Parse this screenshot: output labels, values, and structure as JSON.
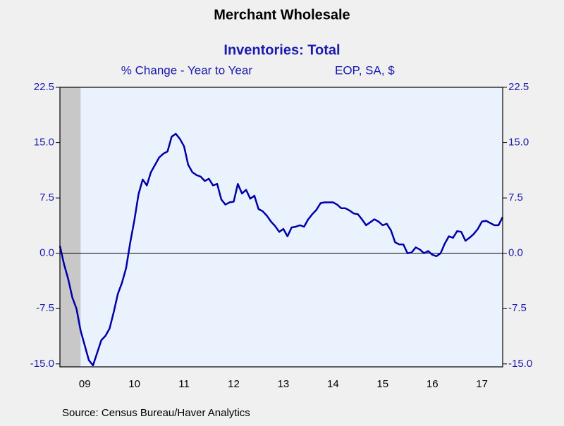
{
  "chart_data": {
    "type": "line",
    "title": "Merchant Wholesale",
    "subtitle": "Inventories: Total",
    "units": "% Change - Year to Year",
    "notes": "EOP, SA, $",
    "source": "Source:  Census Bureau/Haver Analytics",
    "x": [
      2009,
      2009.083,
      2009.167,
      2009.25,
      2009.333,
      2009.417,
      2009.5,
      2009.583,
      2009.667,
      2009.75,
      2009.833,
      2009.917,
      2010,
      2010.083,
      2010.167,
      2010.25,
      2010.333,
      2010.417,
      2010.5,
      2010.583,
      2010.667,
      2010.75,
      2010.833,
      2010.917,
      2011,
      2011.083,
      2011.167,
      2011.25,
      2011.333,
      2011.417,
      2011.5,
      2011.583,
      2011.667,
      2011.75,
      2011.833,
      2011.917,
      2012,
      2012.083,
      2012.167,
      2012.25,
      2012.333,
      2012.417,
      2012.5,
      2012.583,
      2012.667,
      2012.75,
      2012.833,
      2012.917,
      2013,
      2013.083,
      2013.167,
      2013.25,
      2013.333,
      2013.417,
      2013.5,
      2013.583,
      2013.667,
      2013.75,
      2013.833,
      2013.917,
      2014,
      2014.083,
      2014.167,
      2014.25,
      2014.333,
      2014.417,
      2014.5,
      2014.583,
      2014.667,
      2014.75,
      2014.833,
      2014.917,
      2015,
      2015.083,
      2015.167,
      2015.25,
      2015.333,
      2015.417,
      2015.5,
      2015.583,
      2015.667,
      2015.75,
      2015.833,
      2015.917,
      2016,
      2016.083,
      2016.167,
      2016.25,
      2016.333,
      2016.417,
      2016.5,
      2016.583,
      2016.667,
      2016.75,
      2016.833,
      2016.917,
      2017,
      2017.083,
      2017.167,
      2017.25,
      2017.333,
      2017.417,
      2017.5,
      2017.583,
      2017.667,
      2017.75,
      2017.833,
      2017.917
    ],
    "series": [
      {
        "color": "#0000a8",
        "values": [
          1.0,
          -1.5,
          -3.5,
          -6,
          -7.5,
          -10.5,
          -12.5,
          -14.5,
          -15.2,
          -13.5,
          -11.8,
          -11.2,
          -10.2,
          -8,
          -5.5,
          -4,
          -2,
          1.5,
          4.5,
          8,
          10,
          9.2,
          11,
          12,
          13,
          13.5,
          13.8,
          15.8,
          16.2,
          15.5,
          14.5,
          12,
          11,
          10.6,
          10.4,
          9.8,
          10.1,
          9.2,
          9.4,
          7.3,
          6.6,
          6.9,
          7,
          9.4,
          8.1,
          8.6,
          7.4,
          7.8,
          6,
          5.7,
          5.1,
          4.3,
          3.7,
          2.9,
          3.3,
          2.3,
          3.5,
          3.6,
          3.8,
          3.6,
          4.6,
          5.3,
          5.9,
          6.8,
          6.9,
          6.9,
          6.9,
          6.6,
          6.1,
          6.1,
          5.8,
          5.4,
          5.3,
          4.6,
          3.8,
          4.2,
          4.6,
          4.3,
          3.8,
          4.0,
          3.1,
          1.5,
          1.2,
          1.2,
          0.0,
          0.1,
          0.8,
          0.5,
          0.0,
          0.3,
          -0.2,
          -0.4,
          0.0,
          1.3,
          2.3,
          2.1,
          3.0,
          2.9,
          1.7,
          2.1,
          2.6,
          3.3,
          4.3,
          4.4,
          4.1,
          3.8,
          3.8,
          4.9
        ]
      }
    ],
    "xlim": [
      2009,
      2017.917
    ],
    "xticks": [
      {
        "value": 2009.5,
        "label": "09"
      },
      {
        "value": 2010.5,
        "label": "10"
      },
      {
        "value": 2011.5,
        "label": "11"
      },
      {
        "value": 2012.5,
        "label": "12"
      },
      {
        "value": 2013.5,
        "label": "13"
      },
      {
        "value": 2014.5,
        "label": "14"
      },
      {
        "value": 2015.5,
        "label": "15"
      },
      {
        "value": 2016.5,
        "label": "16"
      },
      {
        "value": 2017.5,
        "label": "17"
      }
    ],
    "ylim": [
      -15.4,
      22.5
    ],
    "yticks": [
      {
        "value": 22.5,
        "label": "22.5"
      },
      {
        "value": 15,
        "label": "15.0"
      },
      {
        "value": 7.5,
        "label": "7.5"
      },
      {
        "value": 0,
        "label": "0.0"
      },
      {
        "value": -7.5,
        "label": "-7.5"
      },
      {
        "value": -15,
        "label": "-15.0"
      }
    ],
    "reference_line": 0,
    "shaded_range": [
      2009,
      2009.417
    ]
  }
}
